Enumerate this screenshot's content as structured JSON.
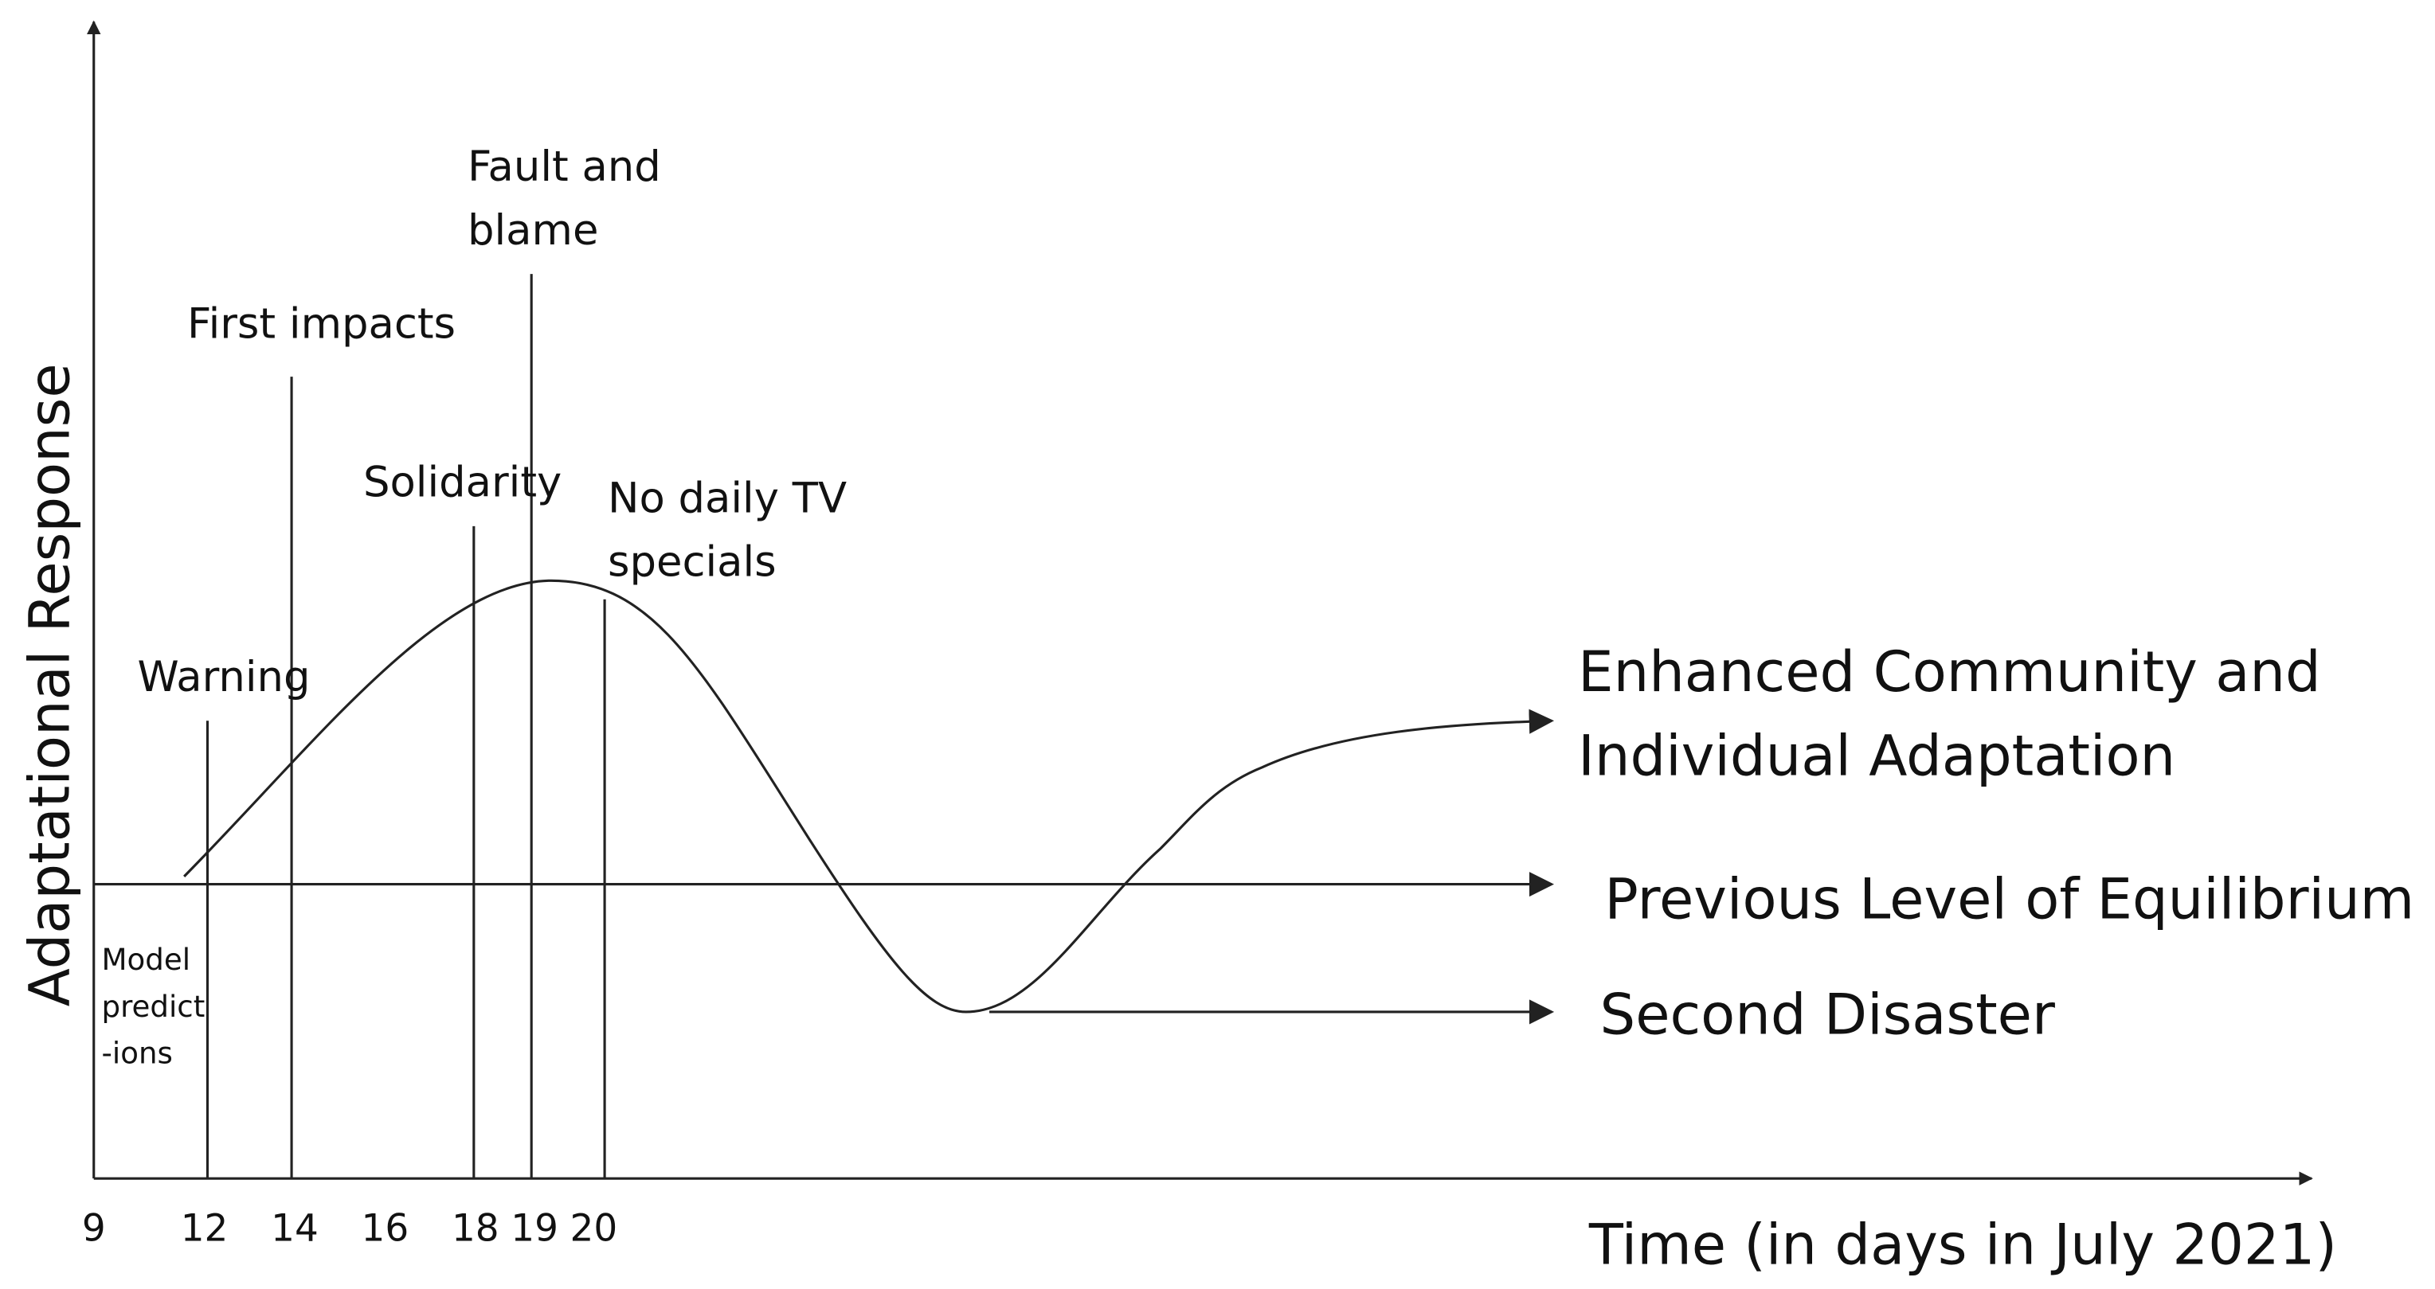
{
  "axes": {
    "y_label": "Adaptational Response",
    "x_label": "Time (in days in July 2021)",
    "x_ticks": [
      "9",
      "12",
      "14",
      "16",
      "18",
      "19",
      "20"
    ]
  },
  "events": [
    {
      "lines": [
        "Warning"
      ]
    },
    {
      "lines": [
        "First impacts"
      ]
    },
    {
      "lines": [
        "Solidarity"
      ]
    },
    {
      "lines": [
        "Fault and",
        "blame"
      ]
    },
    {
      "lines": [
        "No daily TV",
        "specials"
      ]
    }
  ],
  "note": {
    "lines": [
      "Model",
      "predict",
      "-ions"
    ]
  },
  "outcomes": [
    {
      "lines": [
        "Enhanced Community and",
        "Individual Adaptation"
      ]
    },
    {
      "lines": [
        "Previous Level of Equilibrium"
      ]
    },
    {
      "lines": [
        "Second Disaster"
      ]
    }
  ]
}
